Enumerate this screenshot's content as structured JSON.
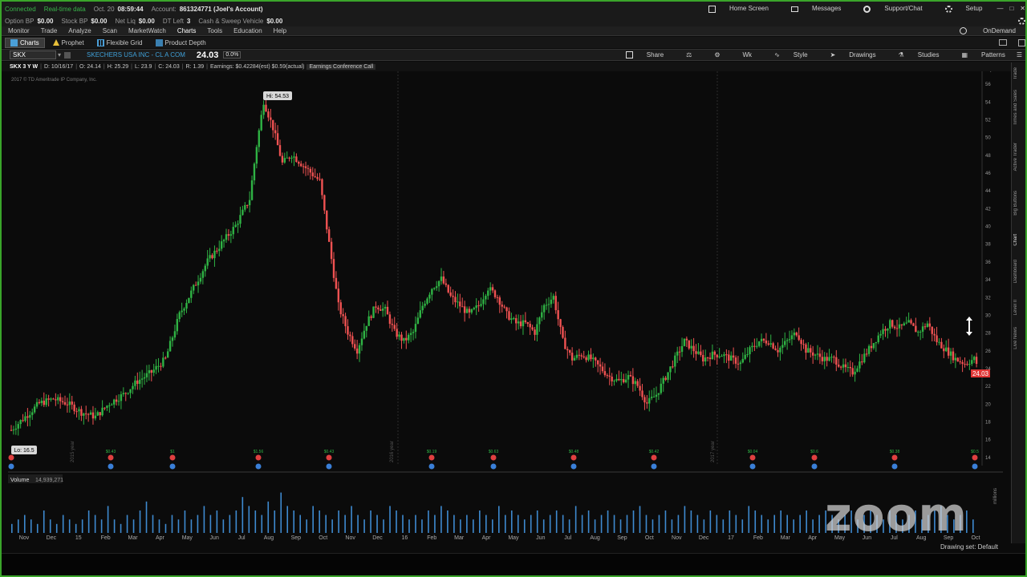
{
  "status": {
    "connected": "Connected",
    "data": "Real-time data",
    "date": "Oct. 20",
    "time": "08:59:44",
    "account_label": "Account:",
    "account_value": "861324771 (Joel's Account)"
  },
  "balances": [
    {
      "label": "Option BP",
      "value": "$0.00"
    },
    {
      "label": "Stock BP",
      "value": "$0.00"
    },
    {
      "label": "Net Liq",
      "value": "$0.00"
    },
    {
      "label": "DT Left",
      "value": "3"
    },
    {
      "label": "Cash & Sweep Vehicle",
      "value": "$0.00"
    }
  ],
  "header_links": {
    "home": "Home Screen",
    "messages": "Messages",
    "support": "Support/Chat",
    "setup": "Setup"
  },
  "menu": [
    "Monitor",
    "Trade",
    "Analyze",
    "Scan",
    "MarketWatch",
    "Charts",
    "Tools",
    "Education",
    "Help"
  ],
  "menu_active": "Charts",
  "ondemand": "OnDemand",
  "subtabs": [
    {
      "label": "Charts",
      "selected": true
    },
    {
      "label": "Prophet",
      "selected": false
    },
    {
      "label": "Flexible Grid",
      "selected": false
    },
    {
      "label": "Product Depth",
      "selected": false
    }
  ],
  "toolbar": {
    "symbol": "SKX",
    "company": "SKECHERS USA INC - CL A COM",
    "price": "24.03",
    "change": "0.0%",
    "share": "Share",
    "wk": "Wk",
    "style": "Style",
    "drawings": "Drawings",
    "studies": "Studies",
    "patterns": "Patterns"
  },
  "info_bar": {
    "timeframe": "SKX 3 Y W",
    "d": "D: 10/16/17",
    "o": "O: 24.14",
    "h": "H: 25.29",
    "l": "L: 23.9",
    "c": "C: 24.03",
    "r": "R: 1.39",
    "earnings": "Earnings: $0.42284(est) $0.59(actual)",
    "event": "Earnings Conference Call",
    "copyright": "2017 © TD Ameritrade IP Company, Inc."
  },
  "volume_label": "Volume",
  "volume_value": "14,939,271",
  "volume_unit": "millions",
  "drawing_set": "Drawing set: Default",
  "watermark": "zoom",
  "sidebar_tabs": [
    "Trade",
    "Times and Sales",
    "Active Trader",
    "Big Buttons",
    "Chart",
    "Dashboard",
    "Level II",
    "Live News"
  ],
  "chart_data": {
    "type": "candlestick",
    "y_ticks": [
      14,
      16,
      18,
      20,
      22,
      24,
      26,
      28,
      30,
      32,
      34,
      36,
      38,
      40,
      42,
      44,
      46,
      48,
      50,
      52,
      54,
      56
    ],
    "ylim": [
      13,
      57
    ],
    "x_tick_labels": [
      "Nov",
      "Dec",
      "15",
      "Feb",
      "Mar",
      "Apr",
      "May",
      "Jun",
      "Jul",
      "Aug",
      "Sep",
      "Oct",
      "Nov",
      "Dec",
      "16",
      "Feb",
      "Mar",
      "Apr",
      "May",
      "Jun",
      "Jul",
      "Aug",
      "Sep",
      "Oct",
      "Nov",
      "Dec",
      "17",
      "Feb",
      "Mar",
      "Apr",
      "May",
      "Jun",
      "Jul",
      "Aug",
      "Sep",
      "Oct"
    ],
    "year_labels": [
      "2015 year",
      "2016 year",
      "2017 year"
    ],
    "high_label": "Hi: 54.53",
    "low_label": "Lo: 16.5",
    "last_price": "24.03",
    "earnings_labels": [
      "$0.43",
      "$1",
      "$1.56",
      "$0.43",
      "$0.19",
      "$0.63",
      "$0.48",
      "$0.42",
      "$0.04",
      "$0.6",
      "$0.38",
      "$0.5"
    ],
    "path_points": [
      [
        0,
        17
      ],
      [
        6,
        18.5
      ],
      [
        12,
        20
      ],
      [
        18,
        20.5
      ],
      [
        24,
        20
      ],
      [
        30,
        19
      ],
      [
        36,
        18.5
      ],
      [
        42,
        20
      ],
      [
        48,
        21
      ],
      [
        54,
        22.5
      ],
      [
        60,
        23.5
      ],
      [
        66,
        25
      ],
      [
        72,
        30
      ],
      [
        78,
        33
      ],
      [
        84,
        36
      ],
      [
        90,
        38
      ],
      [
        96,
        40
      ],
      [
        102,
        43
      ],
      [
        105,
        49
      ],
      [
        108,
        54
      ],
      [
        112,
        51
      ],
      [
        116,
        47
      ],
      [
        120,
        48
      ],
      [
        124,
        47
      ],
      [
        128,
        46
      ],
      [
        132,
        45
      ],
      [
        136,
        38
      ],
      [
        140,
        31
      ],
      [
        144,
        28
      ],
      [
        148,
        26
      ],
      [
        152,
        29
      ],
      [
        156,
        31
      ],
      [
        160,
        30.5
      ],
      [
        164,
        28
      ],
      [
        168,
        27
      ],
      [
        172,
        28
      ],
      [
        176,
        31
      ],
      [
        180,
        33
      ],
      [
        184,
        34
      ],
      [
        188,
        32
      ],
      [
        192,
        31
      ],
      [
        196,
        30
      ],
      [
        200,
        31
      ],
      [
        204,
        33
      ],
      [
        208,
        32
      ],
      [
        212,
        30
      ],
      [
        216,
        29
      ],
      [
        220,
        29
      ],
      [
        224,
        28
      ],
      [
        228,
        31
      ],
      [
        232,
        32
      ],
      [
        236,
        27
      ],
      [
        240,
        25
      ],
      [
        244,
        25.5
      ],
      [
        248,
        25
      ],
      [
        252,
        24
      ],
      [
        256,
        23
      ],
      [
        260,
        22.5
      ],
      [
        264,
        23
      ],
      [
        268,
        22
      ],
      [
        272,
        20
      ],
      [
        276,
        21
      ],
      [
        280,
        23
      ],
      [
        284,
        25
      ],
      [
        288,
        27
      ],
      [
        292,
        26
      ],
      [
        296,
        25
      ],
      [
        300,
        25.5
      ],
      [
        304,
        25.5
      ],
      [
        308,
        25
      ],
      [
        312,
        24.5
      ],
      [
        316,
        26
      ],
      [
        320,
        27
      ],
      [
        324,
        27
      ],
      [
        328,
        26
      ],
      [
        332,
        27
      ],
      [
        336,
        28
      ],
      [
        340,
        26
      ],
      [
        344,
        25.5
      ],
      [
        348,
        25
      ],
      [
        352,
        25
      ],
      [
        356,
        24
      ],
      [
        360,
        23.5
      ],
      [
        364,
        25
      ],
      [
        368,
        26.5
      ],
      [
        372,
        28
      ],
      [
        376,
        29
      ],
      [
        380,
        28.5
      ],
      [
        384,
        29
      ],
      [
        388,
        28
      ],
      [
        392,
        29
      ],
      [
        396,
        27
      ],
      [
        400,
        26
      ],
      [
        404,
        25
      ],
      [
        408,
        24.5
      ],
      [
        412,
        25
      ],
      [
        414,
        24
      ]
    ]
  },
  "volume_bars": [
    2,
    3,
    4,
    3,
    2,
    5,
    3,
    2,
    4,
    3,
    2,
    3,
    5,
    4,
    3,
    6,
    3,
    2,
    4,
    3,
    5,
    7,
    4,
    3,
    2,
    4,
    3,
    5,
    3,
    4,
    6,
    4,
    5,
    3,
    4,
    5,
    8,
    6,
    5,
    4,
    7,
    5,
    9,
    6,
    5,
    4,
    3,
    6,
    5,
    4,
    3,
    5,
    4,
    6,
    4,
    3,
    5,
    4,
    3,
    6,
    5,
    4,
    3,
    4,
    3,
    5,
    4,
    6,
    5,
    4,
    3,
    4,
    3,
    5,
    4,
    3,
    6,
    4,
    5,
    4,
    3,
    4,
    5,
    3,
    4,
    5,
    4,
    3,
    6,
    4,
    5,
    3,
    4,
    5,
    4,
    3,
    4,
    5,
    6,
    4,
    3,
    4,
    5,
    3,
    4,
    6,
    5,
    4,
    3,
    5,
    4,
    3,
    5,
    4,
    3,
    6,
    5,
    4,
    3,
    4,
    5,
    4,
    3,
    4,
    5,
    3,
    4,
    5,
    4,
    3,
    4,
    5,
    3,
    4,
    5,
    4,
    3,
    5,
    4,
    3,
    4,
    5,
    3,
    4,
    5,
    6,
    4,
    3,
    4,
    5,
    3
  ]
}
